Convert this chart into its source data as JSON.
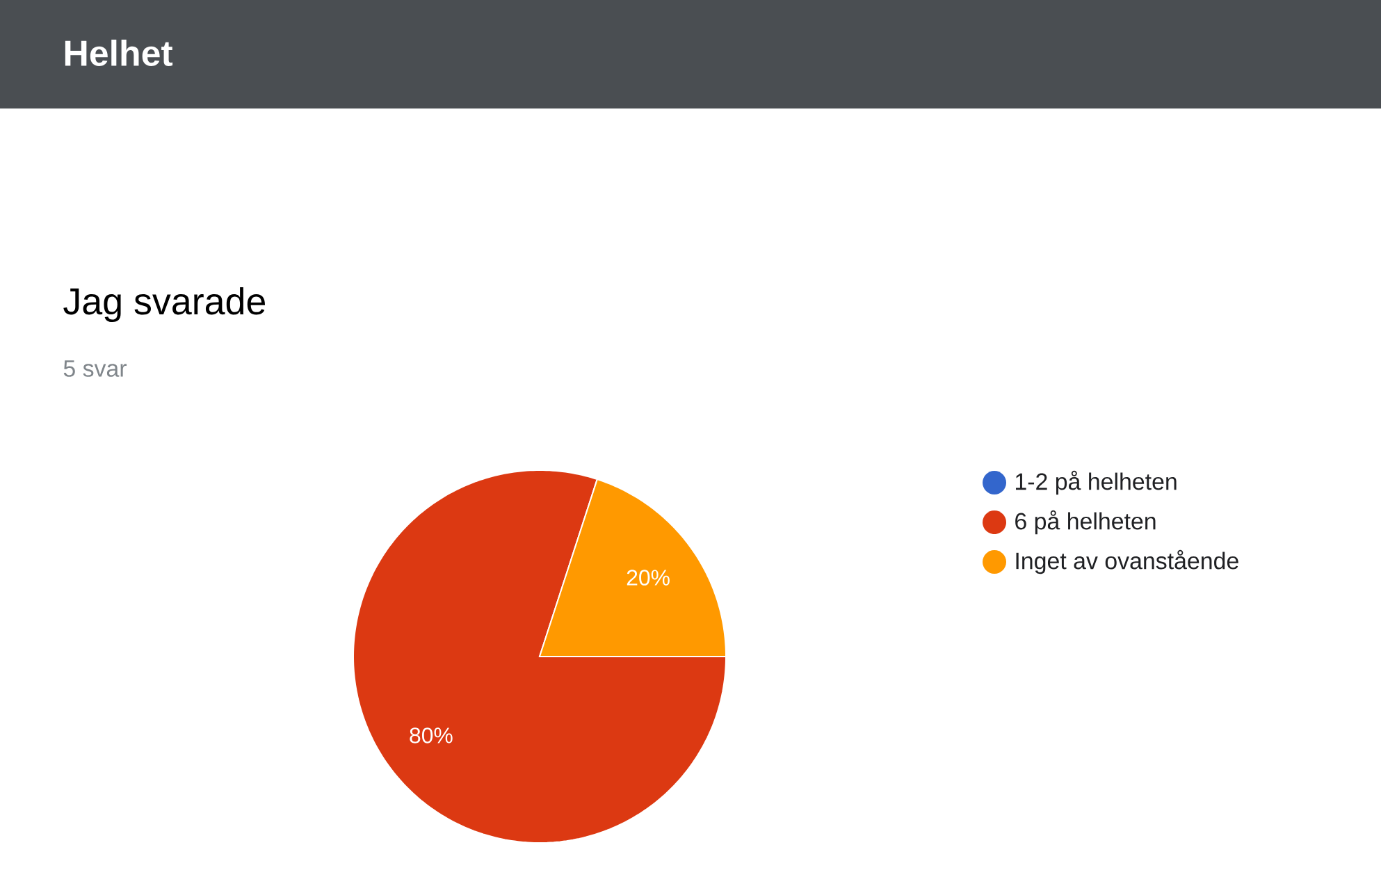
{
  "chart_data": {
    "type": "pie",
    "title": "Jag svarade",
    "subtitle": "5 svar",
    "annotations": [
      "Helhet"
    ],
    "categories": [
      "1-2 på helheten",
      "6 på helheten",
      "Inget av ovanstående"
    ],
    "values": [
      0,
      80,
      20
    ],
    "colors": [
      "#3366cc",
      "#dc3912",
      "#ff9900"
    ],
    "value_labels": [
      null,
      "80%",
      "20%"
    ],
    "legend": "right"
  }
}
